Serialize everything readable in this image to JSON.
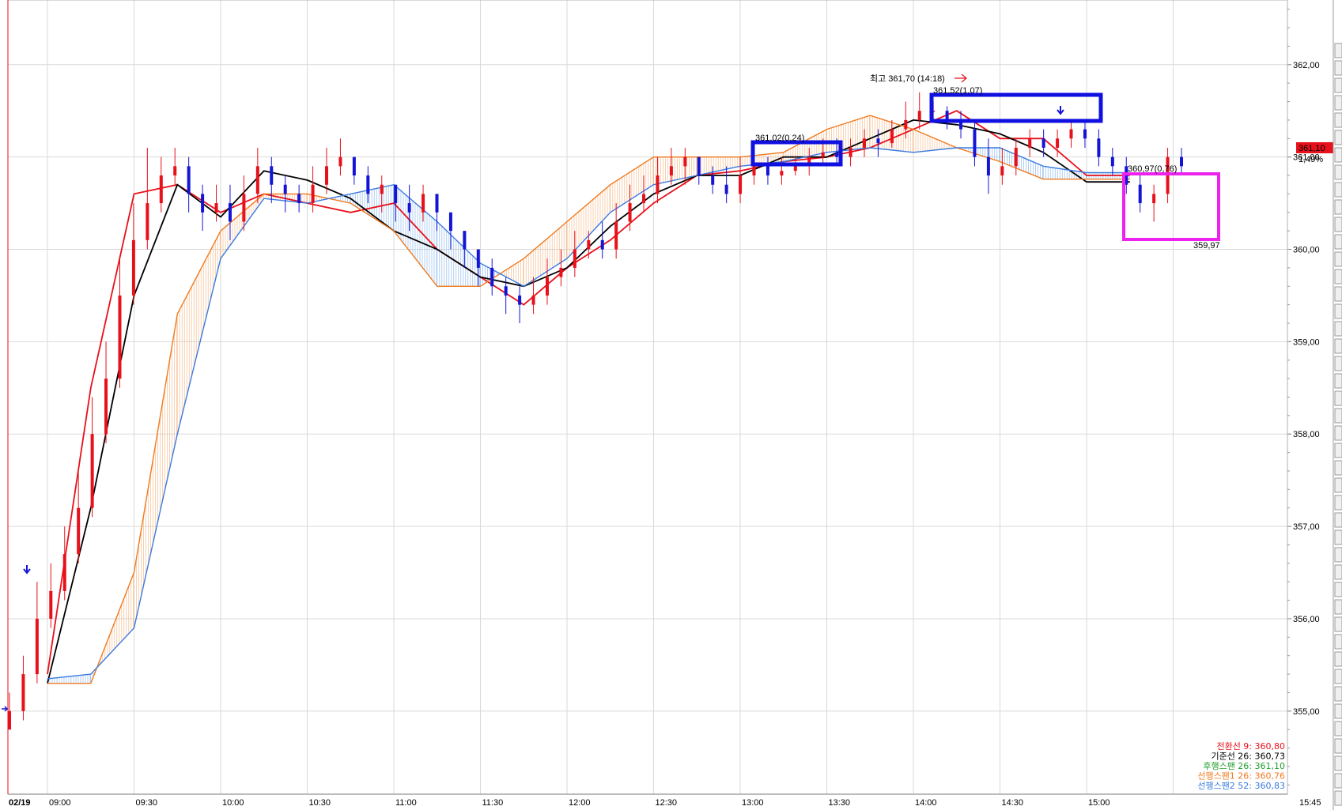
{
  "chart_data": {
    "type": "line",
    "title": "",
    "date_label": "02/19",
    "xlabel": "",
    "ylabel": "",
    "x_ticks": [
      "09:00",
      "09:30",
      "10:00",
      "10:30",
      "11:00",
      "11:30",
      "12:00",
      "12:30",
      "13:00",
      "13:30",
      "14:00",
      "14:30",
      "15:00",
      "15:45"
    ],
    "y_ticks": [
      "355,00",
      "356,00",
      "357,00",
      "358,00",
      "359,00",
      "360,00",
      "361,00",
      "362,00"
    ],
    "ylim": [
      354.1,
      362.7
    ],
    "grid": true,
    "legend_position": "bottom-right",
    "time_minutes": [
      0,
      15,
      30,
      45,
      60,
      75,
      90,
      105,
      120,
      135,
      150,
      165,
      180,
      195,
      210,
      225,
      240,
      255,
      270,
      285,
      300,
      315,
      330,
      345,
      360,
      375
    ],
    "series": [
      {
        "name": "전환선 9",
        "color": "#e8101a",
        "values": [
          355.4,
          358.5,
          360.6,
          360.7,
          360.4,
          360.6,
          360.5,
          360.4,
          360.5,
          360.0,
          359.7,
          359.4,
          359.8,
          360.1,
          360.5,
          360.8,
          360.85,
          360.95,
          361.0,
          361.1,
          361.3,
          361.5,
          361.2,
          361.2,
          360.8,
          360.8
        ]
      },
      {
        "name": "기준선 26",
        "color": "#000000",
        "values": [
          355.3,
          357.2,
          359.5,
          360.7,
          360.35,
          360.85,
          360.75,
          360.55,
          360.2,
          360.0,
          359.7,
          359.6,
          359.8,
          360.25,
          360.6,
          360.8,
          360.8,
          361.0,
          361.0,
          361.2,
          361.4,
          361.35,
          361.25,
          361.05,
          360.73,
          360.73
        ]
      },
      {
        "name": "후행스팬 26",
        "color": "#1f9d2a",
        "values": []
      },
      {
        "name": "선행스팬1 26",
        "color": "#f07a1e",
        "values": [
          355.3,
          355.3,
          356.5,
          359.3,
          360.2,
          360.6,
          360.6,
          360.5,
          360.2,
          359.6,
          359.6,
          359.9,
          360.3,
          360.7,
          361.0,
          361.0,
          361.0,
          361.05,
          361.3,
          361.45,
          361.3,
          361.1,
          360.95,
          360.76,
          360.76,
          360.76
        ]
      },
      {
        "name": "선행스팬2 52",
        "color": "#3a7be0",
        "values": [
          355.35,
          355.4,
          355.9,
          358.0,
          359.9,
          360.55,
          360.5,
          360.6,
          360.7,
          360.3,
          359.85,
          359.6,
          359.9,
          360.4,
          360.7,
          360.8,
          360.9,
          360.95,
          361.05,
          361.1,
          361.05,
          361.1,
          361.1,
          360.9,
          360.83,
          360.83
        ]
      }
    ],
    "legend_entries": [
      {
        "label": "전환선 9: 360,80",
        "color": "#e8101a"
      },
      {
        "label": "기준선 26: 360,73",
        "color": "#000000"
      },
      {
        "label": "후행스팬 26: 361,10",
        "color": "#1f9d2a"
      },
      {
        "label": "선행스팬1 26: 360,76",
        "color": "#f07a1e"
      },
      {
        "label": "선행스팬2 52: 360,83",
        "color": "#3a7be0"
      }
    ],
    "candles": {
      "up_color": "#e8101a",
      "down_color": "#1414d6",
      "open": [
        354.8,
        355.0,
        355.4,
        356.0,
        356.3,
        356.7,
        357.2,
        358.0,
        358.6,
        359.5,
        360.1,
        360.5,
        360.8,
        360.9,
        360.6,
        360.4,
        360.5,
        360.3,
        360.6,
        360.9,
        360.7,
        360.6,
        360.5,
        360.7,
        360.9,
        361.0,
        360.8,
        360.6,
        360.7,
        360.5,
        360.4,
        360.6,
        360.4,
        360.2,
        360.0,
        359.8,
        359.6,
        359.5,
        359.4,
        359.5,
        359.7,
        359.8,
        360.0,
        360.1,
        360.0,
        360.3,
        360.5,
        360.6,
        360.8,
        360.9,
        361.0,
        360.8,
        360.7,
        360.6,
        360.8,
        360.9,
        360.8,
        360.85,
        360.9,
        361.0,
        361.05,
        361.0,
        361.1,
        361.2,
        361.15,
        361.3,
        361.4,
        361.5,
        361.5,
        361.4,
        361.3,
        361.0,
        360.8,
        360.9,
        361.1,
        361.2,
        361.1,
        361.2,
        361.3,
        361.2,
        361.0,
        360.9,
        360.7,
        360.5,
        360.6,
        361.0
      ],
      "close": [
        355.0,
        355.4,
        356.0,
        356.3,
        356.7,
        357.2,
        358.0,
        358.6,
        359.5,
        360.1,
        360.5,
        360.8,
        360.9,
        360.6,
        360.4,
        360.5,
        360.3,
        360.6,
        360.9,
        360.7,
        360.6,
        360.5,
        360.7,
        360.9,
        361.0,
        360.8,
        360.6,
        360.7,
        360.5,
        360.4,
        360.6,
        360.4,
        360.2,
        360.0,
        359.8,
        359.6,
        359.5,
        359.4,
        359.5,
        359.7,
        359.8,
        360.0,
        360.1,
        360.0,
        360.3,
        360.5,
        360.6,
        360.8,
        360.9,
        361.0,
        360.8,
        360.7,
        360.6,
        360.8,
        360.9,
        360.8,
        360.85,
        360.9,
        361.0,
        361.05,
        361.0,
        361.1,
        361.2,
        361.15,
        361.3,
        361.4,
        361.5,
        361.5,
        361.4,
        361.3,
        361.0,
        360.8,
        360.9,
        361.1,
        361.2,
        361.1,
        361.2,
        361.3,
        361.2,
        361.0,
        360.9,
        360.7,
        360.5,
        360.6,
        361.0,
        360.9
      ],
      "high": [
        355.2,
        355.6,
        356.4,
        356.6,
        357.0,
        357.6,
        358.4,
        359.0,
        359.9,
        360.5,
        361.1,
        361.0,
        361.1,
        361.0,
        360.7,
        360.7,
        360.7,
        360.8,
        361.1,
        361.0,
        360.8,
        360.7,
        360.9,
        361.1,
        361.2,
        361.0,
        360.9,
        360.8,
        360.7,
        360.7,
        360.7,
        360.6,
        360.4,
        360.2,
        360.0,
        359.9,
        359.7,
        359.6,
        359.7,
        359.9,
        360.0,
        360.2,
        360.2,
        360.3,
        360.5,
        360.7,
        360.8,
        361.0,
        361.1,
        361.1,
        361.0,
        360.9,
        360.9,
        361.0,
        361.0,
        361.0,
        361.0,
        361.0,
        361.1,
        361.2,
        361.2,
        361.2,
        361.3,
        361.3,
        361.4,
        361.6,
        361.7,
        361.6,
        361.55,
        361.5,
        361.4,
        361.2,
        361.1,
        361.2,
        361.3,
        361.3,
        361.3,
        361.4,
        361.4,
        361.3,
        361.1,
        361.0,
        360.8,
        360.7,
        361.1,
        361.1
      ],
      "low": [
        354.8,
        354.9,
        355.3,
        355.9,
        356.2,
        356.6,
        357.1,
        357.9,
        358.5,
        359.4,
        360.0,
        360.4,
        360.7,
        360.4,
        360.2,
        360.3,
        360.1,
        360.2,
        360.5,
        360.5,
        360.4,
        360.4,
        360.4,
        360.6,
        360.8,
        360.7,
        360.5,
        360.4,
        360.3,
        360.2,
        360.3,
        360.2,
        360.0,
        359.8,
        359.6,
        359.5,
        359.3,
        359.2,
        359.3,
        359.4,
        359.6,
        359.7,
        359.9,
        359.9,
        359.9,
        360.2,
        360.4,
        360.5,
        360.7,
        360.7,
        360.7,
        360.6,
        360.5,
        360.5,
        360.7,
        360.7,
        360.7,
        360.8,
        360.8,
        360.9,
        360.9,
        360.9,
        361.0,
        361.0,
        361.1,
        361.2,
        361.3,
        361.4,
        361.3,
        361.2,
        360.9,
        360.6,
        360.7,
        360.8,
        361.0,
        361.0,
        361.0,
        361.1,
        361.1,
        360.9,
        360.8,
        360.6,
        360.4,
        360.3,
        360.5,
        360.8
      ]
    },
    "annotations": {
      "high_label": "최고 361,70 (14:18)",
      "low_label": "359,97",
      "label_a": "361,02(0,24)",
      "label_b": "361,52(1,07)",
      "label_c": "360,97(0,76)",
      "current_price": "361,10",
      "current_change": "1,49%"
    }
  }
}
